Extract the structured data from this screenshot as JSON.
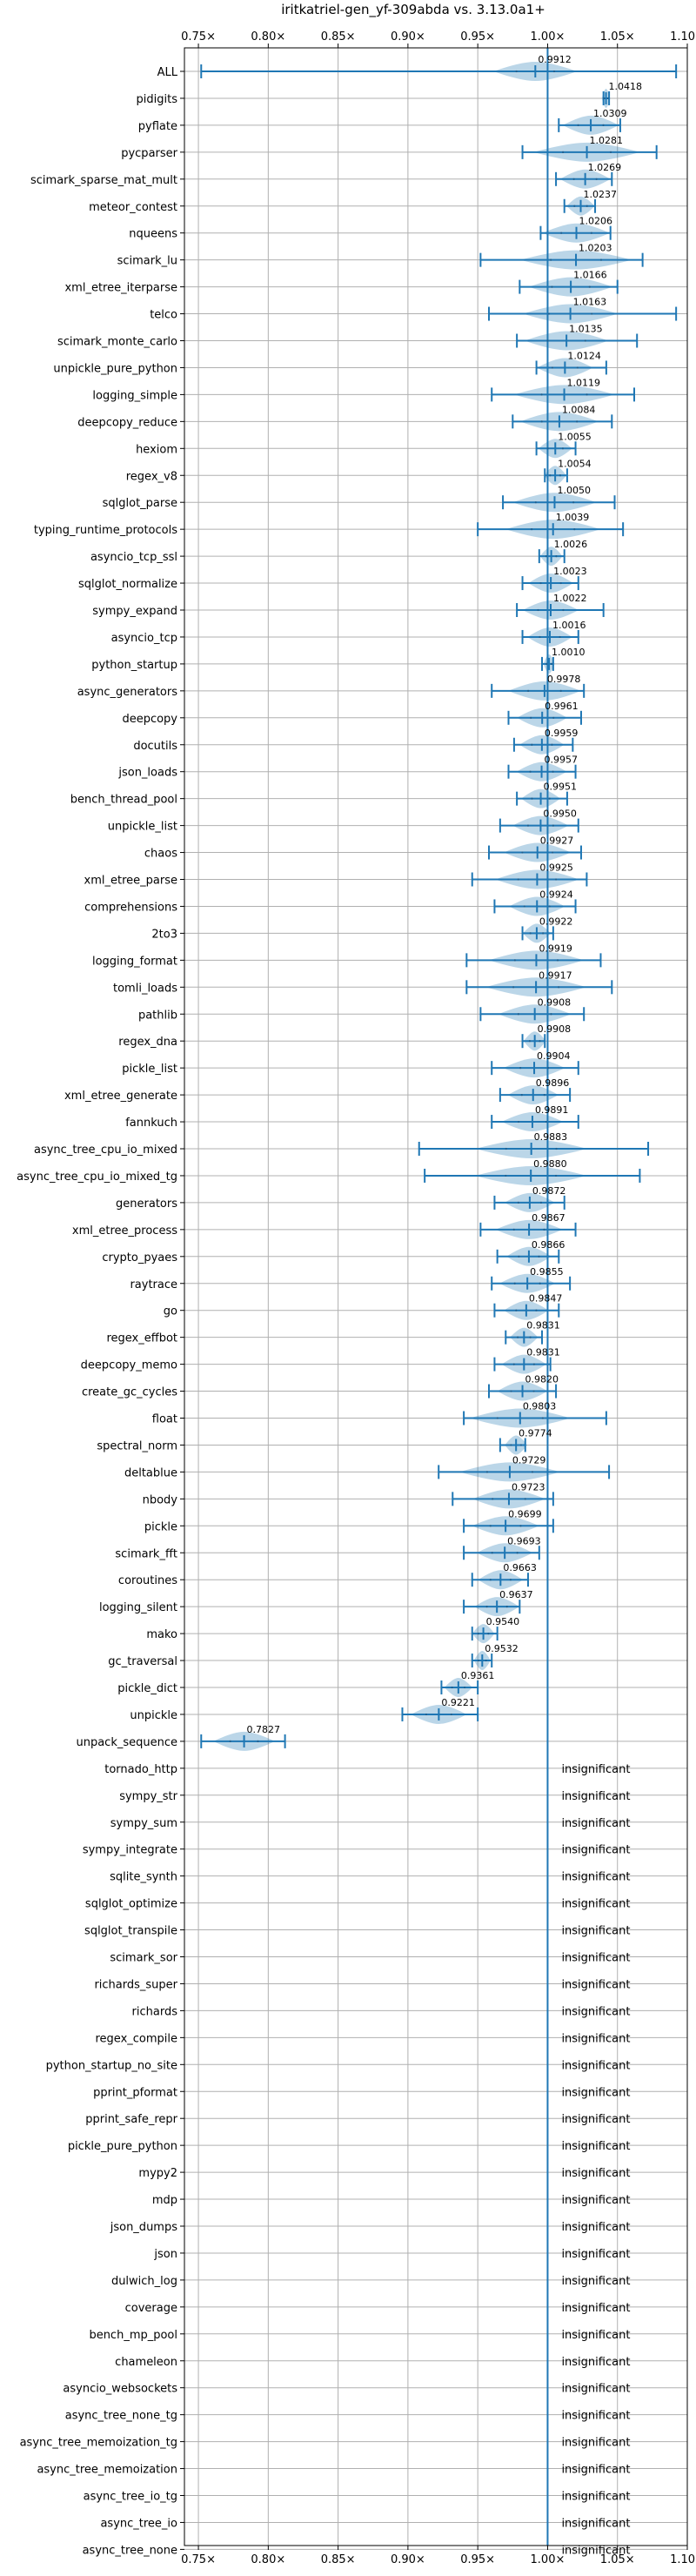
{
  "chart_data": {
    "type": "violin",
    "title": "iritkatriel-gen_yf-309abda vs. 3.13.0a1+",
    "xlim": [
      0.74,
      1.1
    ],
    "xticks": [
      0.75,
      0.8,
      0.85,
      0.9,
      0.95,
      1.0,
      1.05,
      1.1
    ],
    "xtick_labels": [
      "0.75×",
      "0.80×",
      "0.85×",
      "0.90×",
      "0.95×",
      "1.00×",
      "1.05×",
      "1.10×"
    ],
    "reference_line": 1.0,
    "grid": true,
    "insignificant_label": "insignificant",
    "benchmarks": [
      {
        "name": "ALL",
        "mean": 0.9912,
        "label": "0.9912",
        "min": 0.752,
        "max": 1.092,
        "violin_half_width": 0.03
      },
      {
        "name": "pidigits",
        "mean": 1.0418,
        "label": "1.0418",
        "min": 1.04,
        "max": 1.044,
        "violin_half_width": 0.003
      },
      {
        "name": "pyflate",
        "mean": 1.0309,
        "label": "1.0309",
        "min": 1.008,
        "max": 1.052,
        "violin_half_width": 0.02
      },
      {
        "name": "pycparser",
        "mean": 1.0281,
        "label": "1.0281",
        "min": 0.982,
        "max": 1.078,
        "violin_half_width": 0.038
      },
      {
        "name": "scimark_sparse_mat_mult",
        "mean": 1.0269,
        "label": "1.0269",
        "min": 1.006,
        "max": 1.046,
        "violin_half_width": 0.018
      },
      {
        "name": "meteor_contest",
        "mean": 1.0237,
        "label": "1.0237",
        "min": 1.012,
        "max": 1.034,
        "violin_half_width": 0.01
      },
      {
        "name": "nqueens",
        "mean": 1.0206,
        "label": "1.0206",
        "min": 0.995,
        "max": 1.045,
        "violin_half_width": 0.024
      },
      {
        "name": "scimark_lu",
        "mean": 1.0203,
        "label": "1.0203",
        "min": 0.952,
        "max": 1.068,
        "violin_half_width": 0.04
      },
      {
        "name": "xml_etree_iterparse",
        "mean": 1.0166,
        "label": "1.0166",
        "min": 0.98,
        "max": 1.05,
        "violin_half_width": 0.03
      },
      {
        "name": "telco",
        "mean": 1.0163,
        "label": "1.0163",
        "min": 0.958,
        "max": 1.092,
        "violin_half_width": 0.034
      },
      {
        "name": "scimark_monte_carlo",
        "mean": 1.0135,
        "label": "1.0135",
        "min": 0.978,
        "max": 1.064,
        "violin_half_width": 0.03
      },
      {
        "name": "unpickle_pure_python",
        "mean": 1.0124,
        "label": "1.0124",
        "min": 0.992,
        "max": 1.042,
        "violin_half_width": 0.02
      },
      {
        "name": "logging_simple",
        "mean": 1.0119,
        "label": "1.0119",
        "min": 0.96,
        "max": 1.062,
        "violin_half_width": 0.036
      },
      {
        "name": "deepcopy_reduce",
        "mean": 1.0084,
        "label": "1.0084",
        "min": 0.975,
        "max": 1.046,
        "violin_half_width": 0.028
      },
      {
        "name": "hexiom",
        "mean": 1.0055,
        "label": "1.0055",
        "min": 0.992,
        "max": 1.02,
        "violin_half_width": 0.012
      },
      {
        "name": "regex_v8",
        "mean": 1.0054,
        "label": "1.0054",
        "min": 0.998,
        "max": 1.014,
        "violin_half_width": 0.008
      },
      {
        "name": "sqlglot_parse",
        "mean": 1.005,
        "label": "1.0050",
        "min": 0.968,
        "max": 1.048,
        "violin_half_width": 0.03
      },
      {
        "name": "typing_runtime_protocols",
        "mean": 1.0039,
        "label": "1.0039",
        "min": 0.95,
        "max": 1.054,
        "violin_half_width": 0.034
      },
      {
        "name": "asyncio_tcp_ssl",
        "mean": 1.0026,
        "label": "1.0026",
        "min": 0.994,
        "max": 1.012,
        "violin_half_width": 0.008
      },
      {
        "name": "sqlglot_normalize",
        "mean": 1.0023,
        "label": "1.0023",
        "min": 0.982,
        "max": 1.022,
        "violin_half_width": 0.016
      },
      {
        "name": "sympy_expand",
        "mean": 1.0022,
        "label": "1.0022",
        "min": 0.978,
        "max": 1.04,
        "violin_half_width": 0.02
      },
      {
        "name": "asyncio_tcp",
        "mean": 1.0016,
        "label": "1.0016",
        "min": 0.982,
        "max": 1.022,
        "violin_half_width": 0.016
      },
      {
        "name": "python_startup",
        "mean": 1.001,
        "label": "1.0010",
        "min": 0.996,
        "max": 1.004,
        "violin_half_width": 0.004
      },
      {
        "name": "async_generators",
        "mean": 0.9978,
        "label": "0.9978",
        "min": 0.96,
        "max": 1.026,
        "violin_half_width": 0.026
      },
      {
        "name": "deepcopy",
        "mean": 0.9961,
        "label": "0.9961",
        "min": 0.972,
        "max": 1.024,
        "violin_half_width": 0.018
      },
      {
        "name": "docutils",
        "mean": 0.9959,
        "label": "0.9959",
        "min": 0.976,
        "max": 1.018,
        "violin_half_width": 0.016
      },
      {
        "name": "json_loads",
        "mean": 0.9957,
        "label": "0.9957",
        "min": 0.972,
        "max": 1.02,
        "violin_half_width": 0.018
      },
      {
        "name": "bench_thread_pool",
        "mean": 0.9951,
        "label": "0.9951",
        "min": 0.978,
        "max": 1.014,
        "violin_half_width": 0.014
      },
      {
        "name": "unpickle_list",
        "mean": 0.995,
        "label": "0.9950",
        "min": 0.966,
        "max": 1.022,
        "violin_half_width": 0.02
      },
      {
        "name": "chaos",
        "mean": 0.9927,
        "label": "0.9927",
        "min": 0.958,
        "max": 1.024,
        "violin_half_width": 0.024
      },
      {
        "name": "xml_etree_parse",
        "mean": 0.9925,
        "label": "0.9925",
        "min": 0.946,
        "max": 1.028,
        "violin_half_width": 0.03
      },
      {
        "name": "comprehensions",
        "mean": 0.9924,
        "label": "0.9924",
        "min": 0.962,
        "max": 1.02,
        "violin_half_width": 0.02
      },
      {
        "name": "2to3",
        "mean": 0.9922,
        "label": "0.9922",
        "min": 0.982,
        "max": 1.004,
        "violin_half_width": 0.01
      },
      {
        "name": "logging_format",
        "mean": 0.9919,
        "label": "0.9919",
        "min": 0.942,
        "max": 1.038,
        "violin_half_width": 0.034
      },
      {
        "name": "tomli_loads",
        "mean": 0.9917,
        "label": "0.9917",
        "min": 0.942,
        "max": 1.046,
        "violin_half_width": 0.036
      },
      {
        "name": "pathlib",
        "mean": 0.9908,
        "label": "0.9908",
        "min": 0.952,
        "max": 1.026,
        "violin_half_width": 0.026
      },
      {
        "name": "regex_dna",
        "mean": 0.9908,
        "label": "0.9908",
        "min": 0.982,
        "max": 0.998,
        "violin_half_width": 0.008
      },
      {
        "name": "pickle_list",
        "mean": 0.9904,
        "label": "0.9904",
        "min": 0.96,
        "max": 1.022,
        "violin_half_width": 0.022
      },
      {
        "name": "xml_etree_generate",
        "mean": 0.9896,
        "label": "0.9896",
        "min": 0.966,
        "max": 1.016,
        "violin_half_width": 0.018
      },
      {
        "name": "fannkuch",
        "mean": 0.9891,
        "label": "0.9891",
        "min": 0.96,
        "max": 1.022,
        "violin_half_width": 0.022
      },
      {
        "name": "async_tree_cpu_io_mixed",
        "mean": 0.9883,
        "label": "0.9883",
        "min": 0.908,
        "max": 1.072,
        "violin_half_width": 0.04
      },
      {
        "name": "async_tree_cpu_io_mixed_tg",
        "mean": 0.988,
        "label": "0.9880",
        "min": 0.912,
        "max": 1.066,
        "violin_half_width": 0.04
      },
      {
        "name": "generators",
        "mean": 0.9872,
        "label": "0.9872",
        "min": 0.962,
        "max": 1.012,
        "violin_half_width": 0.018
      },
      {
        "name": "xml_etree_process",
        "mean": 0.9867,
        "label": "0.9867",
        "min": 0.952,
        "max": 1.02,
        "violin_half_width": 0.024
      },
      {
        "name": "crypto_pyaes",
        "mean": 0.9866,
        "label": "0.9866",
        "min": 0.964,
        "max": 1.008,
        "violin_half_width": 0.016
      },
      {
        "name": "raytrace",
        "mean": 0.9855,
        "label": "0.9855",
        "min": 0.96,
        "max": 1.016,
        "violin_half_width": 0.02
      },
      {
        "name": "go",
        "mean": 0.9847,
        "label": "0.9847",
        "min": 0.962,
        "max": 1.008,
        "violin_half_width": 0.016
      },
      {
        "name": "regex_effbot",
        "mean": 0.9831,
        "label": "0.9831",
        "min": 0.97,
        "max": 0.996,
        "violin_half_width": 0.01
      },
      {
        "name": "deepcopy_memo",
        "mean": 0.9831,
        "label": "0.9831",
        "min": 0.962,
        "max": 1.002,
        "violin_half_width": 0.016
      },
      {
        "name": "create_gc_cycles",
        "mean": 0.982,
        "label": "0.9820",
        "min": 0.958,
        "max": 1.006,
        "violin_half_width": 0.018
      },
      {
        "name": "float",
        "mean": 0.9803,
        "label": "0.9803",
        "min": 0.94,
        "max": 1.042,
        "violin_half_width": 0.036
      },
      {
        "name": "spectral_norm",
        "mean": 0.9774,
        "label": "0.9774",
        "min": 0.966,
        "max": 0.984,
        "violin_half_width": 0.008
      },
      {
        "name": "deltablue",
        "mean": 0.9729,
        "label": "0.9729",
        "min": 0.922,
        "max": 1.044,
        "violin_half_width": 0.036
      },
      {
        "name": "nbody",
        "mean": 0.9723,
        "label": "0.9723",
        "min": 0.932,
        "max": 1.004,
        "violin_half_width": 0.026
      },
      {
        "name": "pickle",
        "mean": 0.9699,
        "label": "0.9699",
        "min": 0.94,
        "max": 1.004,
        "violin_half_width": 0.024
      },
      {
        "name": "scimark_fft",
        "mean": 0.9693,
        "label": "0.9693",
        "min": 0.94,
        "max": 0.994,
        "violin_half_width": 0.02
      },
      {
        "name": "coroutines",
        "mean": 0.9663,
        "label": "0.9663",
        "min": 0.946,
        "max": 0.986,
        "violin_half_width": 0.016
      },
      {
        "name": "logging_silent",
        "mean": 0.9637,
        "label": "0.9637",
        "min": 0.94,
        "max": 0.98,
        "violin_half_width": 0.016
      },
      {
        "name": "mako",
        "mean": 0.954,
        "label": "0.9540",
        "min": 0.946,
        "max": 0.964,
        "violin_half_width": 0.008
      },
      {
        "name": "gc_traversal",
        "mean": 0.9532,
        "label": "0.9532",
        "min": 0.946,
        "max": 0.96,
        "violin_half_width": 0.006
      },
      {
        "name": "pickle_dict",
        "mean": 0.9361,
        "label": "0.9361",
        "min": 0.924,
        "max": 0.95,
        "violin_half_width": 0.01
      },
      {
        "name": "unpickle",
        "mean": 0.9221,
        "label": "0.9221",
        "min": 0.896,
        "max": 0.95,
        "violin_half_width": 0.02
      },
      {
        "name": "unpack_sequence",
        "mean": 0.7827,
        "label": "0.7827",
        "min": 0.752,
        "max": 0.812,
        "violin_half_width": 0.022
      },
      {
        "name": "tornado_http",
        "insignificant": true
      },
      {
        "name": "sympy_str",
        "insignificant": true
      },
      {
        "name": "sympy_sum",
        "insignificant": true
      },
      {
        "name": "sympy_integrate",
        "insignificant": true
      },
      {
        "name": "sqlite_synth",
        "insignificant": true
      },
      {
        "name": "sqlglot_optimize",
        "insignificant": true
      },
      {
        "name": "sqlglot_transpile",
        "insignificant": true
      },
      {
        "name": "scimark_sor",
        "insignificant": true
      },
      {
        "name": "richards_super",
        "insignificant": true
      },
      {
        "name": "richards",
        "insignificant": true
      },
      {
        "name": "regex_compile",
        "insignificant": true
      },
      {
        "name": "python_startup_no_site",
        "insignificant": true
      },
      {
        "name": "pprint_pformat",
        "insignificant": true
      },
      {
        "name": "pprint_safe_repr",
        "insignificant": true
      },
      {
        "name": "pickle_pure_python",
        "insignificant": true
      },
      {
        "name": "mypy2",
        "insignificant": true
      },
      {
        "name": "mdp",
        "insignificant": true
      },
      {
        "name": "json_dumps",
        "insignificant": true
      },
      {
        "name": "json",
        "insignificant": true
      },
      {
        "name": "dulwich_log",
        "insignificant": true
      },
      {
        "name": "coverage",
        "insignificant": true
      },
      {
        "name": "bench_mp_pool",
        "insignificant": true
      },
      {
        "name": "chameleon",
        "insignificant": true
      },
      {
        "name": "asyncio_websockets",
        "insignificant": true
      },
      {
        "name": "async_tree_none_tg",
        "insignificant": true
      },
      {
        "name": "async_tree_memoization_tg",
        "insignificant": true
      },
      {
        "name": "async_tree_memoization",
        "insignificant": true
      },
      {
        "name": "async_tree_io_tg",
        "insignificant": true
      },
      {
        "name": "async_tree_io",
        "insignificant": true
      },
      {
        "name": "async_tree_none",
        "insignificant": true
      }
    ]
  }
}
